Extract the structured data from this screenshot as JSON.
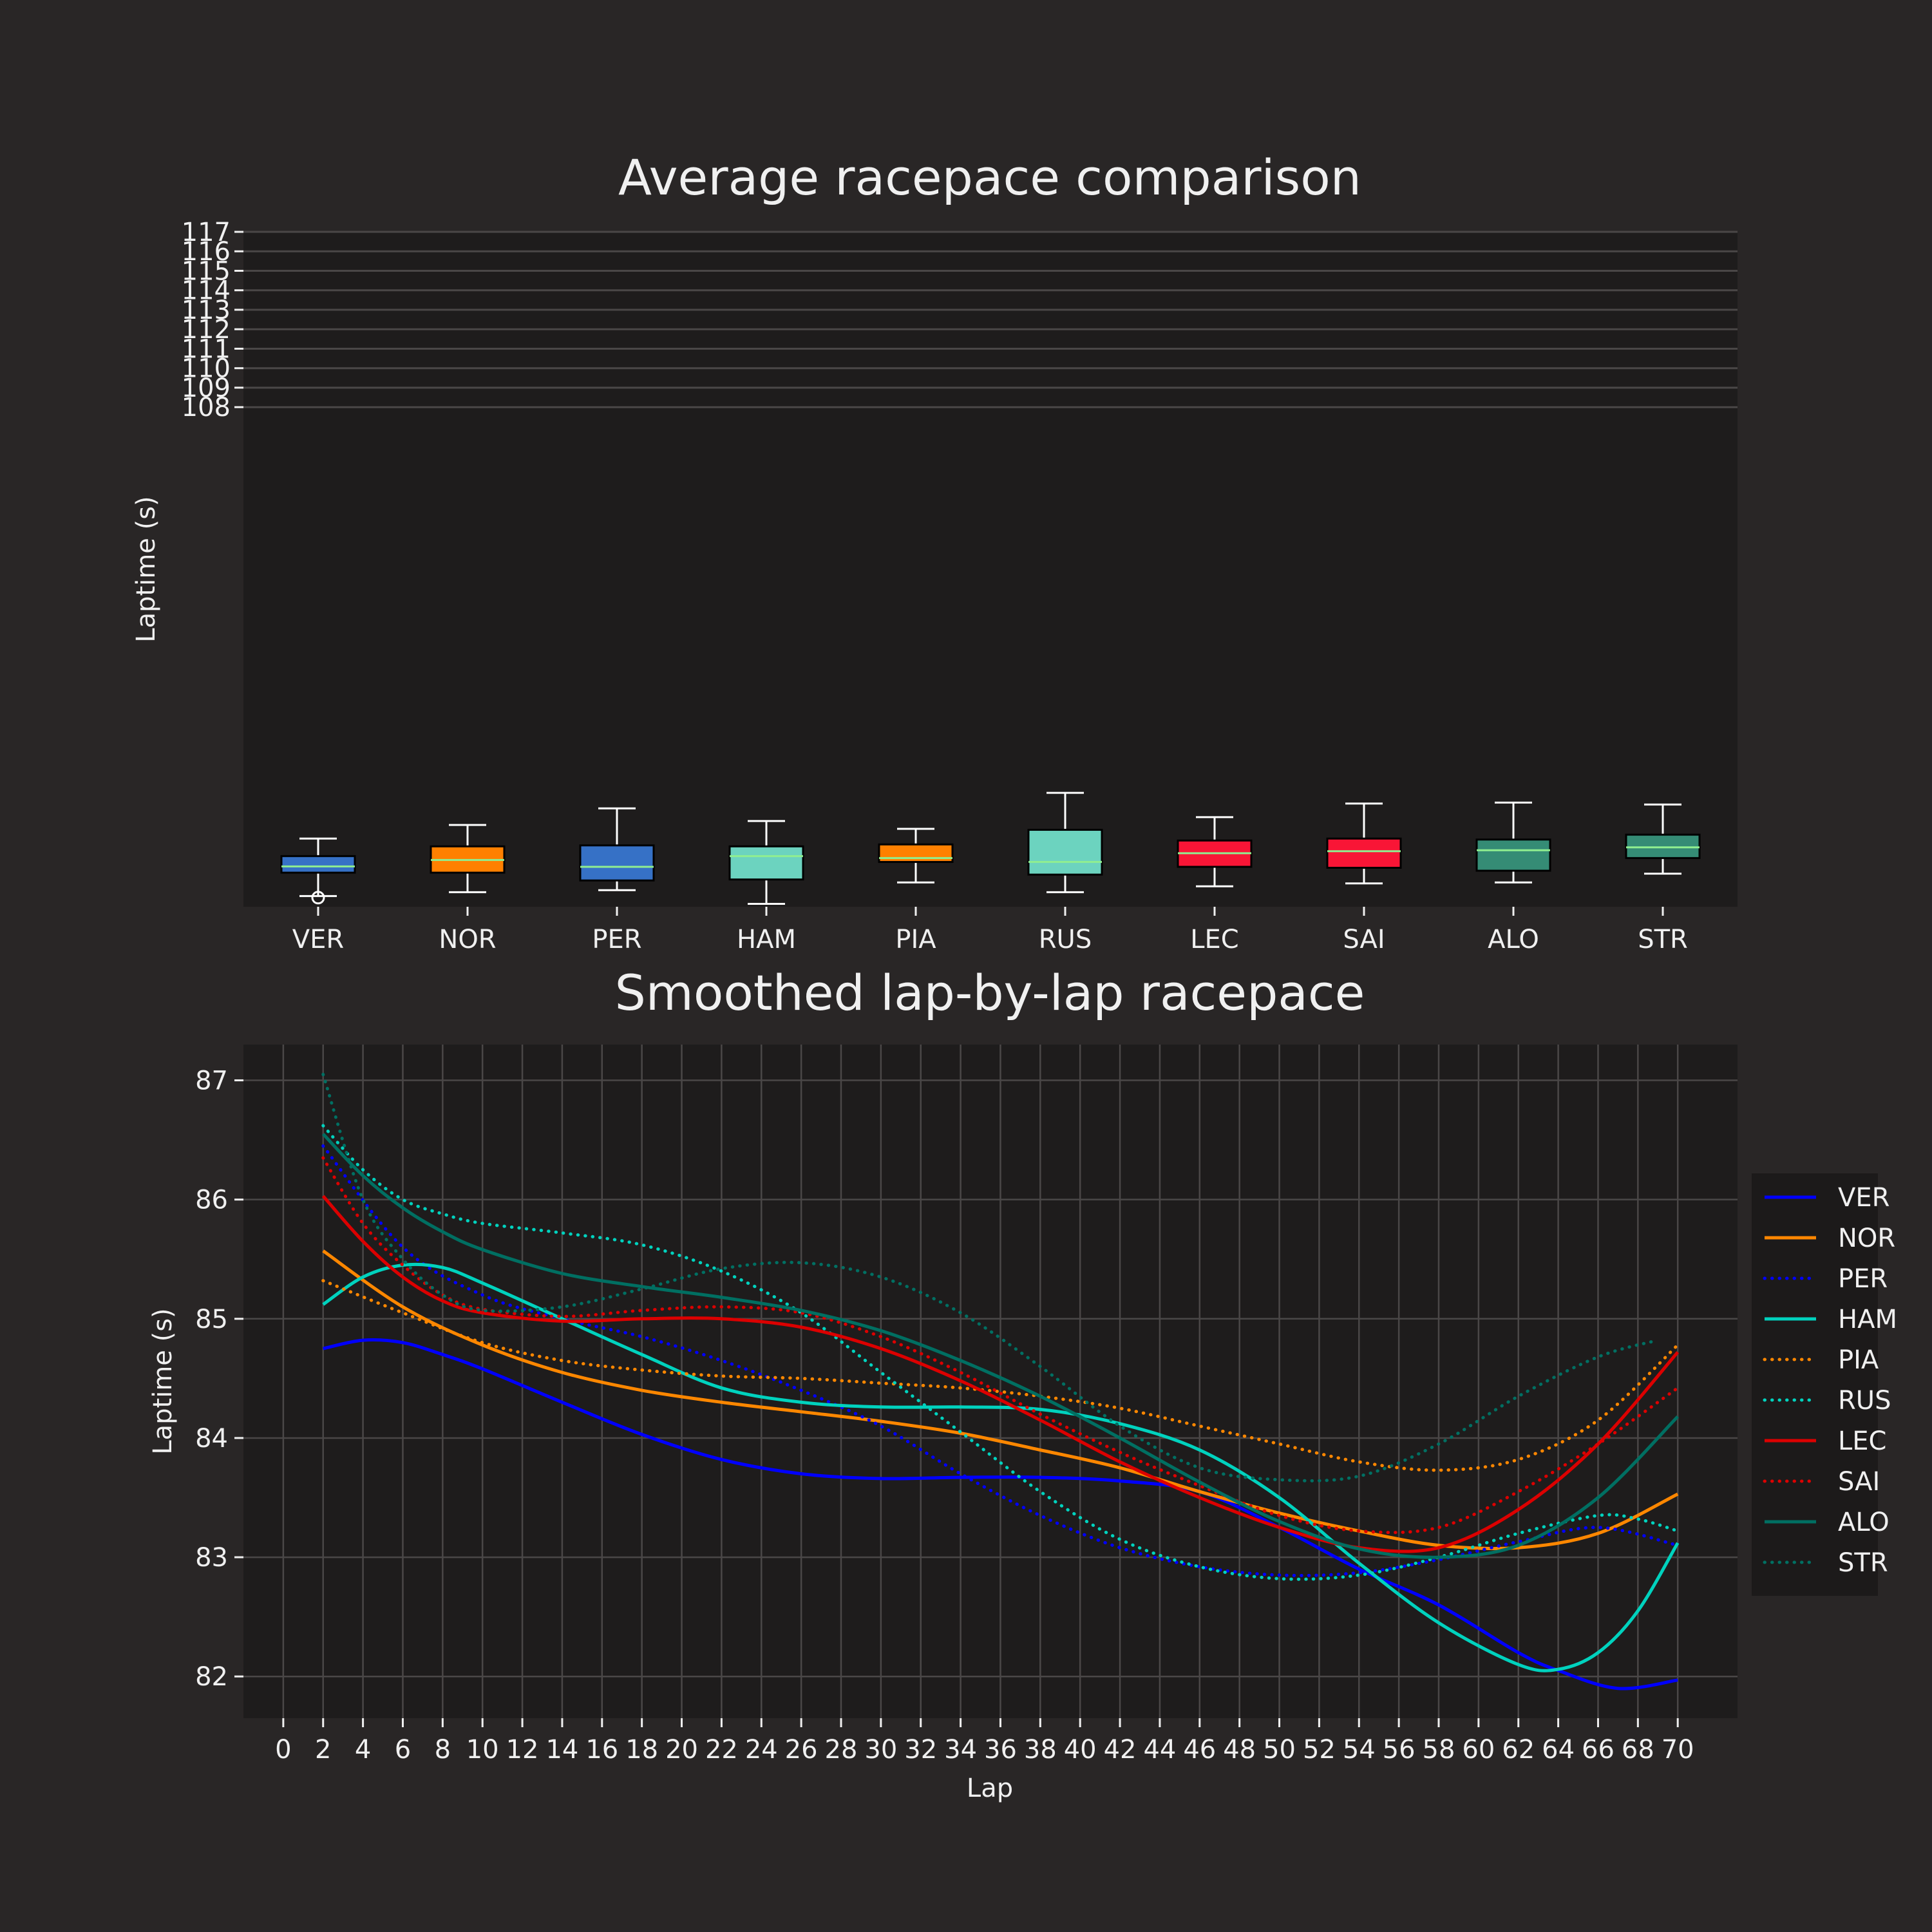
{
  "theme": {
    "figure_bg": "#292626",
    "axes_bg": "#1e1c1c",
    "text_color": "#f0f0f0",
    "grid_color": "#4a4747",
    "median_color": "#90ee90"
  },
  "chart_data": [
    {
      "type": "box",
      "title": "Average racepace comparison",
      "xlabel": "",
      "ylabel": "Laptime (s)",
      "ylim": [
        82.35,
        117.0
      ],
      "yticks": [
        108,
        109,
        110,
        111,
        112,
        113,
        114,
        115,
        116,
        117
      ],
      "ytick_labels": [
        "108",
        "109",
        "110",
        "111",
        "112",
        "113",
        "114",
        "115",
        "116",
        "117"
      ],
      "grid": "horizontal",
      "categories": [
        "VER",
        "NOR",
        "PER",
        "HAM",
        "PIA",
        "RUS",
        "LEC",
        "SAI",
        "ALO",
        "STR"
      ],
      "boxes": [
        {
          "label": "VER",
          "color": "#3671C6",
          "whisker_low": 82.9,
          "q1": 84.1,
          "median": 84.42,
          "q3": 84.95,
          "whisker_high": 85.85,
          "fliers": [
            82.82
          ]
        },
        {
          "label": "NOR",
          "color": "#FF8000",
          "whisker_low": 83.1,
          "q1": 84.1,
          "median": 84.75,
          "q3": 85.45,
          "whisker_high": 86.55,
          "fliers": []
        },
        {
          "label": "PER",
          "color": "#3671C6",
          "whisker_low": 83.2,
          "q1": 83.7,
          "median": 84.4,
          "q3": 85.5,
          "whisker_high": 87.4,
          "fliers": []
        },
        {
          "label": "HAM",
          "color": "#6CD3BF",
          "whisker_low": 82.5,
          "q1": 83.75,
          "median": 84.95,
          "q3": 85.45,
          "whisker_high": 86.75,
          "fliers": []
        },
        {
          "label": "PIA",
          "color": "#FF8000",
          "whisker_low": 83.6,
          "q1": 84.65,
          "median": 84.85,
          "q3": 85.55,
          "whisker_high": 86.35,
          "fliers": []
        },
        {
          "label": "RUS",
          "color": "#6CD3BF",
          "whisker_low": 83.1,
          "q1": 84.0,
          "median": 84.65,
          "q3": 86.3,
          "whisker_high": 88.2,
          "fliers": []
        },
        {
          "label": "LEC",
          "color": "#F91536",
          "whisker_low": 83.4,
          "q1": 84.4,
          "median": 85.1,
          "q3": 85.75,
          "whisker_high": 86.95,
          "fliers": []
        },
        {
          "label": "SAI",
          "color": "#F91536",
          "whisker_low": 83.55,
          "q1": 84.35,
          "median": 85.2,
          "q3": 85.85,
          "whisker_high": 87.65,
          "fliers": []
        },
        {
          "label": "ALO",
          "color": "#358C75",
          "whisker_low": 83.6,
          "q1": 84.2,
          "median": 85.25,
          "q3": 85.8,
          "whisker_high": 87.7,
          "fliers": []
        },
        {
          "label": "STR",
          "color": "#358C75",
          "whisker_low": 84.05,
          "q1": 84.85,
          "median": 85.4,
          "q3": 86.05,
          "whisker_high": 87.6,
          "fliers": []
        }
      ]
    },
    {
      "type": "line",
      "title": "Smoothed lap-by-lap racepace",
      "xlabel": "Lap",
      "ylabel": "Laptime (s)",
      "xlim": [
        -2,
        73
      ],
      "ylim": [
        81.65,
        87.3
      ],
      "xticks": [
        0,
        2,
        4,
        6,
        8,
        10,
        12,
        14,
        16,
        18,
        20,
        22,
        24,
        26,
        28,
        30,
        32,
        34,
        36,
        38,
        40,
        42,
        44,
        46,
        48,
        50,
        52,
        54,
        56,
        58,
        60,
        62,
        64,
        66,
        68,
        70
      ],
      "xtick_labels": [
        "0",
        "2",
        "4",
        "6",
        "8",
        "10",
        "12",
        "14",
        "16",
        "18",
        "20",
        "22",
        "24",
        "26",
        "28",
        "30",
        "32",
        "34",
        "36",
        "38",
        "40",
        "42",
        "44",
        "46",
        "48",
        "50",
        "52",
        "54",
        "56",
        "58",
        "60",
        "62",
        "64",
        "66",
        "68",
        "70"
      ],
      "yticks": [
        82,
        83,
        84,
        85,
        86,
        87
      ],
      "ytick_labels": [
        "82",
        "83",
        "84",
        "85",
        "86",
        "87"
      ],
      "grid": true,
      "legend_position": "right-outside",
      "series": [
        {
          "name": "VER",
          "color": "#0000ff",
          "style": "solid",
          "x": [
            2,
            4,
            6,
            8,
            10,
            14,
            18,
            22,
            26,
            30,
            34,
            38,
            42,
            46,
            50,
            54,
            58,
            62,
            64,
            67,
            70
          ],
          "y": [
            84.75,
            84.82,
            84.8,
            84.7,
            84.58,
            84.3,
            84.03,
            83.82,
            83.7,
            83.66,
            83.67,
            83.67,
            83.64,
            83.55,
            83.25,
            82.9,
            82.6,
            82.2,
            82.05,
            81.9,
            81.97
          ]
        },
        {
          "name": "NOR",
          "color": "#ff8700",
          "style": "solid",
          "x": [
            2,
            6,
            10,
            14,
            18,
            22,
            26,
            30,
            34,
            38,
            42,
            46,
            50,
            54,
            58,
            62,
            66,
            70
          ],
          "y": [
            85.57,
            85.1,
            84.78,
            84.55,
            84.4,
            84.3,
            84.22,
            84.14,
            84.04,
            83.9,
            83.75,
            83.55,
            83.37,
            83.22,
            83.1,
            83.08,
            83.2,
            83.53
          ]
        },
        {
          "name": "PER",
          "color": "#0000ff",
          "style": "dotted",
          "x": [
            2,
            6,
            10,
            14,
            18,
            22,
            26,
            30,
            34,
            38,
            42,
            46,
            50,
            54,
            58,
            62,
            66,
            70
          ],
          "y": [
            86.45,
            85.6,
            85.2,
            85.0,
            84.85,
            84.65,
            84.4,
            84.1,
            83.7,
            83.35,
            83.08,
            82.92,
            82.85,
            82.87,
            82.98,
            83.13,
            83.25,
            83.1
          ]
        },
        {
          "name": "HAM",
          "color": "#00d2be",
          "style": "solid",
          "x": [
            2,
            4,
            6,
            8,
            10,
            14,
            18,
            22,
            26,
            30,
            34,
            38,
            42,
            46,
            50,
            54,
            58,
            62,
            64,
            66,
            68,
            70
          ],
          "y": [
            85.12,
            85.35,
            85.45,
            85.43,
            85.3,
            85.0,
            84.7,
            84.42,
            84.3,
            84.26,
            84.26,
            84.24,
            84.12,
            83.9,
            83.5,
            82.95,
            82.45,
            82.1,
            82.06,
            82.2,
            82.55,
            83.12
          ]
        },
        {
          "name": "PIA",
          "color": "#ff8700",
          "style": "dotted",
          "x": [
            2,
            6,
            10,
            14,
            18,
            22,
            26,
            30,
            34,
            38,
            42,
            46,
            50,
            54,
            58,
            62,
            66,
            70
          ],
          "y": [
            85.32,
            85.05,
            84.8,
            84.65,
            84.57,
            84.52,
            84.5,
            84.46,
            84.42,
            84.35,
            84.25,
            84.1,
            83.95,
            83.8,
            83.73,
            83.82,
            84.15,
            84.78
          ]
        },
        {
          "name": "RUS",
          "color": "#00d2be",
          "style": "dotted",
          "x": [
            2,
            4,
            6,
            8,
            10,
            14,
            18,
            22,
            26,
            30,
            34,
            38,
            42,
            46,
            50,
            54,
            58,
            62,
            66,
            68,
            70
          ],
          "y": [
            86.62,
            86.25,
            86.0,
            85.88,
            85.8,
            85.72,
            85.62,
            85.4,
            85.05,
            84.55,
            84.05,
            83.55,
            83.15,
            82.92,
            82.82,
            82.85,
            83.0,
            83.2,
            83.35,
            83.32,
            83.22
          ]
        },
        {
          "name": "LEC",
          "color": "#dc0000",
          "style": "solid",
          "x": [
            2,
            4,
            6,
            8,
            10,
            14,
            18,
            22,
            26,
            30,
            34,
            38,
            42,
            46,
            50,
            54,
            58,
            62,
            66,
            70
          ],
          "y": [
            86.03,
            85.65,
            85.35,
            85.15,
            85.05,
            84.98,
            85.0,
            85.0,
            84.93,
            84.75,
            84.48,
            84.15,
            83.8,
            83.5,
            83.25,
            83.08,
            83.08,
            83.4,
            83.95,
            84.72
          ]
        },
        {
          "name": "SAI",
          "color": "#dc0000",
          "style": "dotted",
          "x": [
            2,
            4,
            6,
            8,
            10,
            14,
            18,
            22,
            26,
            30,
            34,
            38,
            42,
            46,
            50,
            54,
            58,
            62,
            66,
            70
          ],
          "y": [
            86.35,
            85.8,
            85.45,
            85.2,
            85.08,
            85.02,
            85.07,
            85.1,
            85.05,
            84.85,
            84.55,
            84.2,
            83.88,
            83.6,
            83.35,
            83.22,
            83.25,
            83.55,
            83.95,
            84.42
          ]
        },
        {
          "name": "ALO",
          "color": "#006f62",
          "style": "solid",
          "x": [
            2,
            4,
            6,
            8,
            10,
            14,
            18,
            22,
            26,
            30,
            34,
            38,
            42,
            46,
            50,
            54,
            58,
            62,
            66,
            70
          ],
          "y": [
            86.55,
            86.2,
            85.93,
            85.73,
            85.58,
            85.38,
            85.27,
            85.18,
            85.07,
            84.9,
            84.65,
            84.35,
            84.0,
            83.63,
            83.3,
            83.07,
            83.0,
            83.1,
            83.5,
            84.18
          ]
        },
        {
          "name": "STR",
          "color": "#006f62",
          "style": "dotted",
          "x": [
            2,
            4,
            6,
            8,
            10,
            14,
            18,
            22,
            26,
            30,
            34,
            38,
            42,
            46,
            50,
            54,
            58,
            62,
            66,
            69
          ],
          "y": [
            87.05,
            86.0,
            85.5,
            85.2,
            85.07,
            85.1,
            85.25,
            85.42,
            85.47,
            85.35,
            85.05,
            84.6,
            84.1,
            83.75,
            83.65,
            83.68,
            83.95,
            84.35,
            84.68,
            84.82
          ]
        }
      ]
    }
  ]
}
